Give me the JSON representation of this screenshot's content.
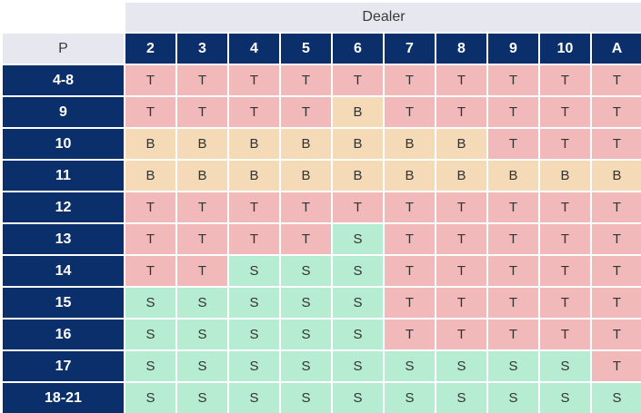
{
  "table": {
    "dealer_label": "Dealer",
    "player_label": "P",
    "dealer_cards": [
      "2",
      "3",
      "4",
      "5",
      "6",
      "7",
      "8",
      "9",
      "10",
      "A"
    ],
    "rows": [
      {
        "label": "4-8",
        "cells": [
          "T",
          "T",
          "T",
          "T",
          "T",
          "T",
          "T",
          "T",
          "T",
          "T"
        ]
      },
      {
        "label": "9",
        "cells": [
          "T",
          "T",
          "T",
          "T",
          "B",
          "T",
          "T",
          "T",
          "T",
          "T"
        ]
      },
      {
        "label": "10",
        "cells": [
          "B",
          "B",
          "B",
          "B",
          "B",
          "B",
          "B",
          "T",
          "T",
          "T"
        ]
      },
      {
        "label": "11",
        "cells": [
          "B",
          "B",
          "B",
          "B",
          "B",
          "B",
          "B",
          "B",
          "B",
          "B"
        ]
      },
      {
        "label": "12",
        "cells": [
          "T",
          "T",
          "T",
          "T",
          "T",
          "T",
          "T",
          "T",
          "T",
          "T"
        ]
      },
      {
        "label": "13",
        "cells": [
          "T",
          "T",
          "T",
          "T",
          "S",
          "T",
          "T",
          "T",
          "T",
          "T"
        ]
      },
      {
        "label": "14",
        "cells": [
          "T",
          "T",
          "S",
          "S",
          "S",
          "T",
          "T",
          "T",
          "T",
          "T"
        ]
      },
      {
        "label": "15",
        "cells": [
          "S",
          "S",
          "S",
          "S",
          "S",
          "T",
          "T",
          "T",
          "T",
          "T"
        ]
      },
      {
        "label": "16",
        "cells": [
          "S",
          "S",
          "S",
          "S",
          "S",
          "T",
          "T",
          "T",
          "T",
          "T"
        ]
      },
      {
        "label": "17",
        "cells": [
          "S",
          "S",
          "S",
          "S",
          "S",
          "S",
          "S",
          "S",
          "S",
          "T"
        ]
      },
      {
        "label": "18-21",
        "cells": [
          "S",
          "S",
          "S",
          "S",
          "S",
          "S",
          "S",
          "S",
          "S",
          "S"
        ]
      }
    ]
  },
  "colors": {
    "header_bg": "#e7e8ef",
    "label_bg": "#0b2f6b",
    "T": "#f2b9bb",
    "B": "#f4dab6",
    "S": "#b6ecd2"
  }
}
